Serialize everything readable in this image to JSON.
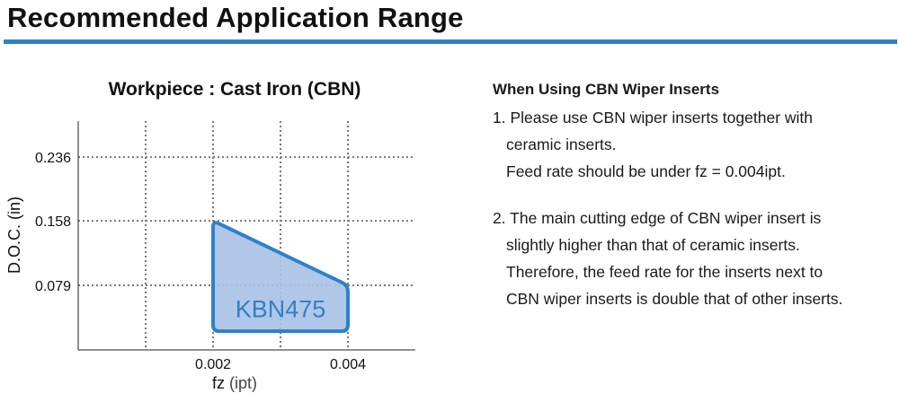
{
  "header": {
    "title": "Recommended Application Range"
  },
  "chart_data": {
    "type": "area",
    "title": "Workpiece : Cast Iron (CBN)",
    "xlabel": "fz",
    "xlabel_unit": "(ipt)",
    "ylabel": "D.O.C. (in)",
    "xlim": [
      0.0,
      0.005
    ],
    "ylim": [
      0.0,
      0.28
    ],
    "x_ticks": [
      0.001,
      0.002,
      0.003,
      0.004
    ],
    "x_tick_labels": [
      "",
      "0.002",
      "",
      "0.004"
    ],
    "y_ticks": [
      0.079,
      0.158,
      0.236
    ],
    "y_tick_labels": [
      "0.079",
      "0.158",
      "0.236"
    ],
    "grid": true,
    "region": {
      "name": "KBN475",
      "color": "#2f80c8",
      "fill": "#a9c1e6",
      "points": [
        [
          0.002,
          0.023
        ],
        [
          0.002,
          0.158
        ],
        [
          0.004,
          0.079
        ],
        [
          0.004,
          0.023
        ]
      ]
    }
  },
  "notes": {
    "heading": "When Using CBN Wiper Inserts",
    "items": [
      {
        "lines": [
          "1. Please use CBN wiper inserts together with",
          "ceramic inserts.",
          "Feed rate should be under fz = 0.004ipt."
        ]
      },
      {
        "lines": [
          "2. The main cutting edge of CBN wiper insert is",
          "slightly higher than that of ceramic inserts.",
          "Therefore, the feed rate for the inserts next to",
          "CBN wiper inserts is double that of other inserts."
        ]
      }
    ]
  }
}
